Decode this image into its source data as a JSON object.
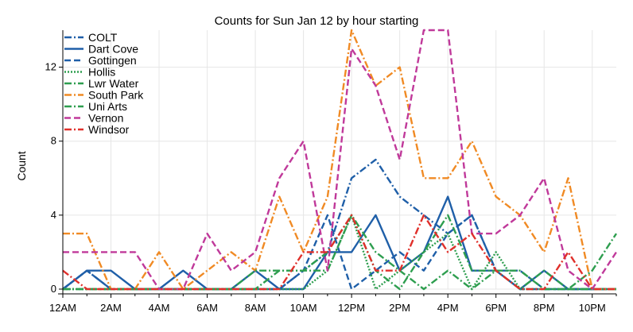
{
  "chart_data": {
    "type": "line",
    "title": "Counts for Sun Jan 12 by hour starting",
    "xlabel": "",
    "ylabel": "Count",
    "x": [
      0,
      1,
      2,
      3,
      4,
      5,
      6,
      7,
      8,
      9,
      10,
      11,
      12,
      13,
      14,
      15,
      16,
      17,
      18,
      19,
      20,
      21,
      22,
      23
    ],
    "xlim": [
      0,
      23
    ],
    "ylim": [
      0,
      14
    ],
    "x_ticks": [
      {
        "value": 0,
        "label": "12AM"
      },
      {
        "value": 2,
        "label": "2AM"
      },
      {
        "value": 4,
        "label": "4AM"
      },
      {
        "value": 6,
        "label": "6AM"
      },
      {
        "value": 8,
        "label": "8AM"
      },
      {
        "value": 10,
        "label": "10AM"
      },
      {
        "value": 12,
        "label": "12PM"
      },
      {
        "value": 14,
        "label": "2PM"
      },
      {
        "value": 16,
        "label": "4PM"
      },
      {
        "value": 18,
        "label": "6PM"
      },
      {
        "value": 20,
        "label": "8PM"
      },
      {
        "value": 22,
        "label": "10PM"
      }
    ],
    "y_ticks": [
      {
        "value": 0,
        "label": "0"
      },
      {
        "value": 4,
        "label": "4"
      },
      {
        "value": 8,
        "label": "8"
      },
      {
        "value": 12,
        "label": "12"
      }
    ],
    "grid": true,
    "legend_position": "top-left",
    "series": [
      {
        "name": "COLT",
        "color": "#1f5fa8",
        "dash": "dashdot",
        "values": [
          0,
          1,
          0,
          0,
          0,
          0,
          0,
          0,
          0,
          0,
          1,
          2,
          6,
          7,
          5,
          4,
          3,
          4,
          1,
          0,
          0,
          0,
          0,
          0
        ]
      },
      {
        "name": "Dart Cove",
        "color": "#1f5fa8",
        "dash": "solid",
        "values": [
          0,
          1,
          1,
          0,
          0,
          1,
          0,
          0,
          1,
          0,
          0,
          2,
          2,
          4,
          1,
          2,
          5,
          1,
          1,
          0,
          1,
          0,
          0,
          0
        ]
      },
      {
        "name": "Gottingen",
        "color": "#1f5fa8",
        "dash": "dash",
        "values": [
          0,
          1,
          0,
          0,
          0,
          0,
          0,
          0,
          0,
          0,
          1,
          4,
          0,
          1,
          2,
          1,
          3,
          4,
          1,
          1,
          0,
          0,
          0,
          0
        ]
      },
      {
        "name": "Hollis",
        "color": "#2e9e4f",
        "dash": "dot",
        "values": [
          0,
          0,
          0,
          0,
          0,
          0,
          0,
          0,
          0,
          0,
          0,
          1,
          4,
          0,
          1,
          2,
          3,
          0,
          2,
          0,
          0,
          0,
          0,
          0
        ]
      },
      {
        "name": "Lwr Water",
        "color": "#2e9e4f",
        "dash": "dashdot",
        "values": [
          0,
          0,
          0,
          0,
          0,
          0,
          0,
          0,
          0,
          1,
          1,
          2,
          4,
          1,
          0,
          2,
          4,
          1,
          1,
          0,
          1,
          0,
          0,
          0
        ]
      },
      {
        "name": "South Park",
        "color": "#f08a24",
        "dash": "dashdot",
        "values": [
          3,
          3,
          0,
          0,
          2,
          0,
          1,
          2,
          1,
          5,
          2,
          5,
          14,
          11,
          12,
          6,
          6,
          8,
          5,
          4,
          2,
          6,
          0,
          0
        ]
      },
      {
        "name": "Uni Arts",
        "color": "#2e9e4f",
        "dash": "dashdot",
        "values": [
          0,
          0,
          0,
          0,
          0,
          0,
          0,
          0,
          1,
          1,
          1,
          1,
          4,
          2,
          1,
          0,
          1,
          0,
          1,
          1,
          0,
          0,
          1,
          3
        ]
      },
      {
        "name": "Vernon",
        "color": "#c0399a",
        "dash": "dash",
        "values": [
          2,
          2,
          2,
          2,
          0,
          0,
          3,
          1,
          2,
          6,
          8,
          1,
          13,
          11,
          7,
          14,
          14,
          3,
          3,
          4,
          6,
          1,
          0,
          2
        ]
      },
      {
        "name": "Windsor",
        "color": "#e0302b",
        "dash": "dashdot",
        "values": [
          1,
          0,
          0,
          0,
          0,
          0,
          0,
          0,
          0,
          0,
          2,
          2,
          4,
          1,
          1,
          4,
          2,
          3,
          1,
          0,
          0,
          2,
          0,
          0
        ]
      }
    ]
  }
}
